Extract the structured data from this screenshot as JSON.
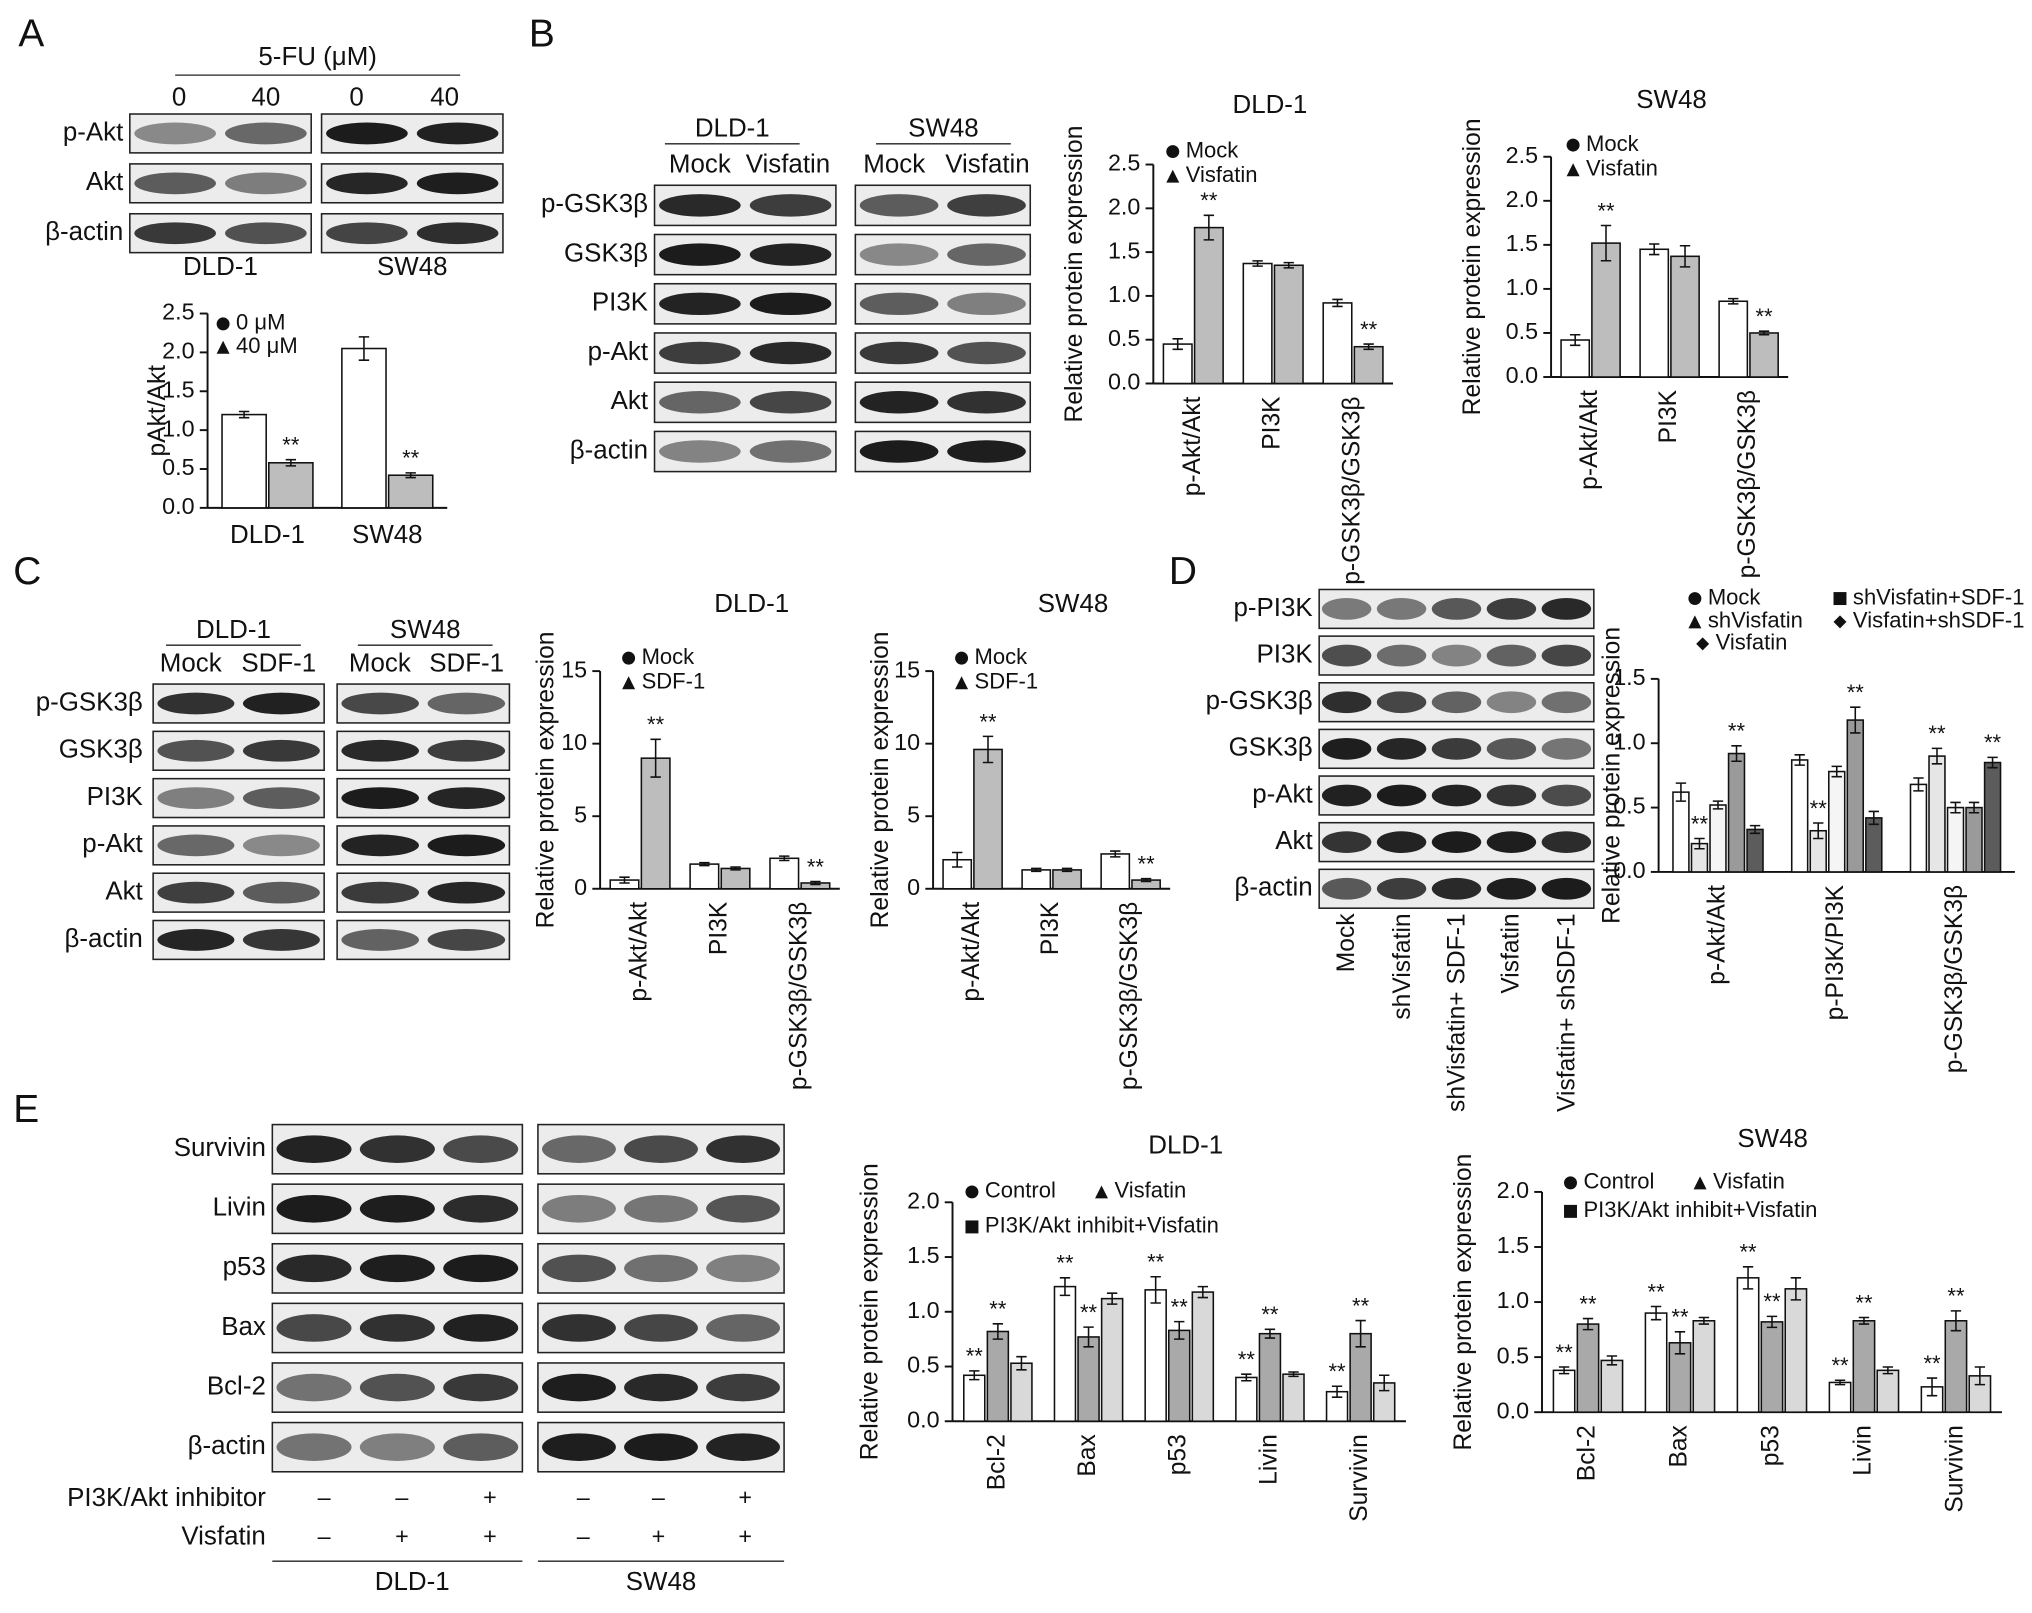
{
  "panels": [
    "A",
    "B",
    "C",
    "D",
    "E"
  ],
  "blots": [
    {
      "header": "5-FU (μM)",
      "lanes": [
        "0",
        "40",
        "0",
        "40"
      ],
      "rows": [
        "p-Akt",
        "Akt",
        "β-actin"
      ],
      "groups": [
        "DLD-1",
        "SW48"
      ]
    },
    {
      "lanes": [
        "Mock",
        "Visfatin",
        "Mock",
        "Visfatin"
      ],
      "rows": [
        "p-GSK3β",
        "GSK3β",
        "PI3K",
        "p-Akt",
        "Akt",
        "β-actin"
      ],
      "groups": [
        "DLD-1",
        "SW48"
      ]
    },
    {
      "lanes": [
        "Mock",
        "SDF-1",
        "Mock",
        "SDF-1"
      ],
      "rows": [
        "p-GSK3β",
        "GSK3β",
        "PI3K",
        "p-Akt",
        "Akt",
        "β-actin"
      ],
      "groups": [
        "DLD-1",
        "SW48"
      ]
    },
    {
      "lanes": [
        "Mock",
        "shVisfatin",
        "shVisfatin+ SDF-1",
        "Visfatin",
        "Visfatin+ shSDF-1"
      ],
      "rows": [
        "p-PI3K",
        "PI3K",
        "p-GSK3β",
        "GSK3β",
        "p-Akt",
        "Akt",
        "β-actin"
      ]
    },
    {
      "rows": [
        "Survivin",
        "Livin",
        "p53",
        "Bax",
        "Bcl-2",
        "β-actin"
      ],
      "groups": [
        "DLD-1",
        "SW48"
      ],
      "treatments": [
        {
          "name": "PI3K/Akt inhibitor",
          "signs": [
            "–",
            "–",
            "+",
            "–",
            "–",
            "+"
          ]
        },
        {
          "name": "Visfatin",
          "signs": [
            "–",
            "+",
            "+",
            "–",
            "+",
            "+"
          ]
        }
      ]
    }
  ],
  "chart_data": [
    {
      "type": "bar",
      "ylabel": "pAkt/Akt",
      "categories": [
        "DLD-1",
        "SW48"
      ],
      "series": [
        {
          "name": "0 μM",
          "color": "#ffffff",
          "marker": "circle",
          "values": [
            1.2,
            2.05
          ],
          "errors": [
            0.04,
            0.15
          ],
          "significance": [
            null,
            null
          ]
        },
        {
          "name": "40 μM",
          "color": "#bdbdbd",
          "marker": "triangle",
          "values": [
            0.58,
            0.42
          ],
          "errors": [
            0.04,
            0.03
          ],
          "significance": [
            "**",
            "**"
          ]
        }
      ],
      "ylim": [
        0,
        2.5
      ],
      "yticks": [
        {
          "value": 0,
          "label": "0.0"
        },
        0.5,
        {
          "value": 1,
          "label": "1.0"
        },
        1.5,
        {
          "value": 2,
          "label": "2.0"
        },
        2.5
      ]
    },
    {
      "type": "bar",
      "title": "DLD-1",
      "ylabel": "Relative protein expression",
      "categories": [
        "p-Akt/Akt",
        "PI3K",
        "p-GSK3β/GSK3β"
      ],
      "series": [
        {
          "name": "Mock",
          "color": "#ffffff",
          "marker": "circle",
          "values": [
            0.45,
            1.37,
            0.92
          ],
          "errors": [
            0.06,
            0.03,
            0.04
          ],
          "significance": [
            null,
            null,
            null
          ]
        },
        {
          "name": "Visfatin",
          "color": "#bdbdbd",
          "marker": "triangle",
          "values": [
            1.78,
            1.35,
            0.42
          ],
          "errors": [
            0.14,
            0.03,
            0.03
          ],
          "significance": [
            "**",
            null,
            "**"
          ]
        }
      ],
      "ylim": [
        0,
        2.5
      ],
      "yticks": [
        {
          "value": 0,
          "label": "0.0"
        },
        0.5,
        {
          "value": 1,
          "label": "1.0"
        },
        1.5,
        {
          "value": 2,
          "label": "2.0"
        },
        2.5
      ]
    },
    {
      "type": "bar",
      "title": "SW48",
      "ylabel": "Relative protein expression",
      "categories": [
        "p-Akt/Akt",
        "PI3K",
        "p-GSK3β/GSK3β"
      ],
      "series": [
        {
          "name": "Mock",
          "color": "#ffffff",
          "marker": "circle",
          "values": [
            0.42,
            1.45,
            0.86
          ],
          "errors": [
            0.06,
            0.06,
            0.03
          ],
          "significance": [
            null,
            null,
            null
          ]
        },
        {
          "name": "Visfatin",
          "color": "#bdbdbd",
          "marker": "triangle",
          "values": [
            1.52,
            1.37,
            0.5
          ],
          "errors": [
            0.2,
            0.12,
            0.02
          ],
          "significance": [
            "**",
            null,
            "**"
          ]
        }
      ],
      "ylim": [
        0,
        2.5
      ],
      "yticks": [
        {
          "value": 0,
          "label": "0.0"
        },
        0.5,
        {
          "value": 1,
          "label": "1.0"
        },
        1.5,
        {
          "value": 2,
          "label": "2.0"
        },
        2.5
      ]
    },
    {
      "type": "bar",
      "title": "DLD-1",
      "ylabel": "Relative protein expression",
      "categories": [
        "p-Akt/Akt",
        "PI3K",
        "p-GSK3β/GSK3β"
      ],
      "series": [
        {
          "name": "Mock",
          "color": "#ffffff",
          "marker": "circle",
          "values": [
            0.6,
            1.7,
            2.1
          ],
          "errors": [
            0.2,
            0.1,
            0.15
          ],
          "significance": [
            null,
            null,
            null
          ]
        },
        {
          "name": "SDF-1",
          "color": "#bdbdbd",
          "marker": "triangle",
          "values": [
            9.0,
            1.4,
            0.4
          ],
          "errors": [
            1.3,
            0.1,
            0.1
          ],
          "significance": [
            "**",
            null,
            "**"
          ]
        }
      ],
      "ylim": [
        0,
        15
      ],
      "yticks": [
        0,
        5,
        10,
        15
      ]
    },
    {
      "type": "bar",
      "title": "SW48",
      "ylabel": "Relative protein expression",
      "categories": [
        "p-Akt/Akt",
        "PI3K",
        "p-GSK3β/GSK3β"
      ],
      "series": [
        {
          "name": "Mock",
          "color": "#ffffff",
          "marker": "circle",
          "values": [
            2.0,
            1.3,
            2.4
          ],
          "errors": [
            0.5,
            0.1,
            0.2
          ],
          "significance": [
            null,
            null,
            null
          ]
        },
        {
          "name": "SDF-1",
          "color": "#bdbdbd",
          "marker": "triangle",
          "values": [
            9.6,
            1.3,
            0.6
          ],
          "errors": [
            0.9,
            0.1,
            0.1
          ],
          "significance": [
            "**",
            null,
            "**"
          ]
        }
      ],
      "ylim": [
        0,
        15
      ],
      "yticks": [
        0,
        5,
        10,
        15
      ]
    },
    {
      "type": "bar",
      "ylabel": "Relative protein expression",
      "categories": [
        "p-Akt/Akt",
        "p-PI3K/PI3K",
        "p-GSK3β/GSK3β"
      ],
      "series": [
        {
          "name": "Mock",
          "color": "#ffffff",
          "marker": "circle",
          "values": [
            0.62,
            0.87,
            0.68
          ],
          "errors": [
            0.07,
            0.04,
            0.05
          ],
          "significance": [
            null,
            null,
            null
          ]
        },
        {
          "name": "shVisfatin",
          "color": "#e6e6e6",
          "marker": "triangle",
          "values": [
            0.22,
            0.32,
            0.9
          ],
          "errors": [
            0.04,
            0.06,
            0.06
          ],
          "significance": [
            "**",
            "**",
            "**"
          ]
        },
        {
          "name": "shVisfatin+SDF-1",
          "color": "#f5f5f5",
          "marker": "square",
          "values": [
            0.52,
            0.78,
            0.5
          ],
          "errors": [
            0.03,
            0.04,
            0.04
          ],
          "significance": [
            null,
            null,
            null
          ]
        },
        {
          "name": "Visfatin",
          "color": "#9a9a9a",
          "marker": "diamond",
          "values": [
            0.92,
            1.18,
            0.5
          ],
          "errors": [
            0.06,
            0.1,
            0.04
          ],
          "significance": [
            "**",
            "**",
            null
          ]
        },
        {
          "name": "Visfatin+shSDF-1",
          "color": "#5c5c5c",
          "marker": "diamond",
          "values": [
            0.33,
            0.42,
            0.85
          ],
          "errors": [
            0.03,
            0.05,
            0.04
          ],
          "significance": [
            null,
            null,
            "**"
          ]
        }
      ],
      "ylim": [
        0,
        1.5
      ],
      "yticks": [
        {
          "value": 0,
          "label": "0.0"
        },
        0.5,
        {
          "value": 1,
          "label": "1.0"
        },
        1.5
      ]
    },
    {
      "type": "bar",
      "title": "DLD-1",
      "ylabel": "Relative protein expression",
      "categories": [
        "Bcl-2",
        "Bax",
        "p53",
        "Livin",
        "Survivin"
      ],
      "series": [
        {
          "name": "Control",
          "color": "#ffffff",
          "marker": "circle",
          "values": [
            0.42,
            1.23,
            1.2,
            0.4,
            0.27
          ],
          "errors": [
            0.04,
            0.08,
            0.12,
            0.03,
            0.05
          ],
          "significance": [
            "**",
            "**",
            "**",
            "**",
            "**"
          ]
        },
        {
          "name": "Visfatin",
          "color": "#a9a9a9",
          "marker": "triangle",
          "values": [
            0.82,
            0.77,
            0.83,
            0.8,
            0.8
          ],
          "errors": [
            0.07,
            0.09,
            0.08,
            0.04,
            0.12
          ],
          "significance": [
            "**",
            "**",
            "**",
            "**",
            "**"
          ]
        },
        {
          "name": "PI3K/Akt inhibit+Visfatin",
          "color": "#d9d9d9",
          "marker": "square",
          "values": [
            0.53,
            1.12,
            1.18,
            0.43,
            0.35
          ],
          "errors": [
            0.06,
            0.05,
            0.05,
            0.02,
            0.07
          ],
          "significance": [
            null,
            null,
            null,
            null,
            null
          ]
        }
      ],
      "ylim": [
        0,
        2
      ],
      "yticks": [
        {
          "value": 0,
          "label": "0.0"
        },
        0.5,
        {
          "value": 1,
          "label": "1.0"
        },
        1.5,
        {
          "value": 2,
          "label": "2.0"
        }
      ]
    },
    {
      "type": "bar",
      "title": "SW48",
      "ylabel": "Relative protein expression",
      "categories": [
        "Bcl-2",
        "Bax",
        "p53",
        "Livin",
        "Survivin"
      ],
      "series": [
        {
          "name": "Control",
          "color": "#ffffff",
          "marker": "circle",
          "values": [
            0.38,
            0.9,
            1.22,
            0.27,
            0.23
          ],
          "errors": [
            0.03,
            0.06,
            0.1,
            0.02,
            0.08
          ],
          "significance": [
            "**",
            "**",
            "**",
            "**",
            "**"
          ]
        },
        {
          "name": "Visfatin",
          "color": "#a9a9a9",
          "marker": "triangle",
          "values": [
            0.8,
            0.63,
            0.82,
            0.83,
            0.83
          ],
          "errors": [
            0.05,
            0.1,
            0.05,
            0.03,
            0.09
          ],
          "significance": [
            "**",
            "**",
            "**",
            "**",
            "**"
          ]
        },
        {
          "name": "PI3K/Akt inhibit+Visfatin",
          "color": "#d9d9d9",
          "marker": "square",
          "values": [
            0.47,
            0.83,
            1.12,
            0.38,
            0.33
          ],
          "errors": [
            0.04,
            0.03,
            0.1,
            0.03,
            0.08
          ],
          "significance": [
            null,
            null,
            null,
            null,
            null
          ]
        }
      ],
      "ylim": [
        0,
        2
      ],
      "yticks": [
        {
          "value": 0,
          "label": "0.0"
        },
        0.5,
        {
          "value": 1,
          "label": "1.0"
        },
        1.5,
        {
          "value": 2,
          "label": "2.0"
        }
      ]
    }
  ]
}
